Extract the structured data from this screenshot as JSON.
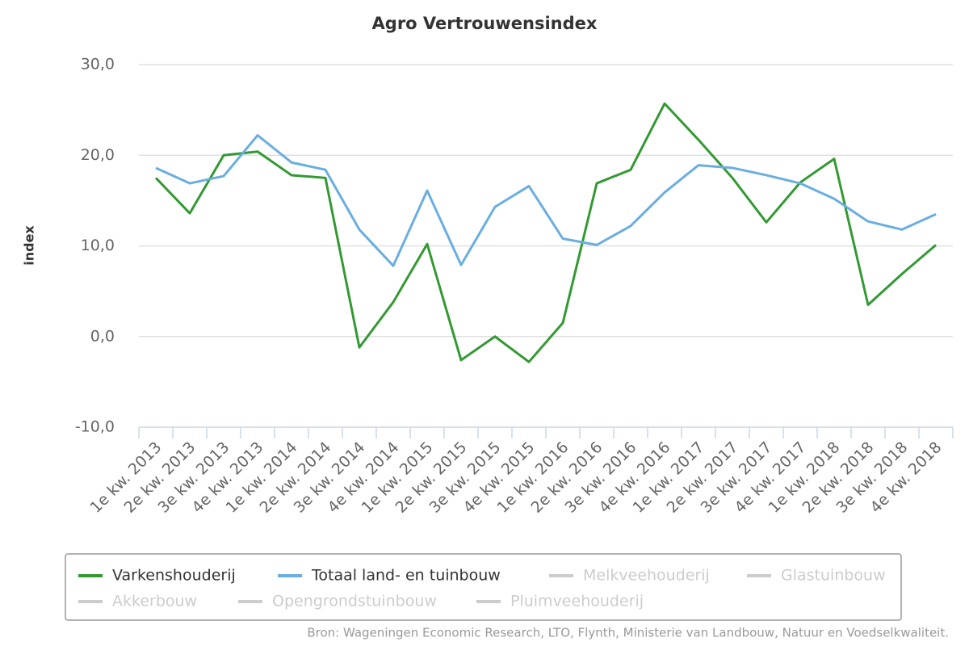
{
  "chart_data": {
    "type": "line",
    "title": "Agro Vertrouwensindex",
    "y_label": "index",
    "source": "Bron: Wageningen Economic Research, LTO, Flynth, Ministerie van Landbouw, Natuur en Voedselkwaliteit.",
    "categories": [
      "1e kw. 2013",
      "2e kw. 2013",
      "3e kw. 2013",
      "4e kw. 2013",
      "1e kw. 2014",
      "2e kw. 2014",
      "3e kw. 2014",
      "4e kw. 2014",
      "1e kw. 2015",
      "2e kw. 2015",
      "3e kw. 2015",
      "4e kw. 2015",
      "1e kw. 2016",
      "2e kw. 2016",
      "3e kw. 2016",
      "4e kw. 2016",
      "1e kw. 2017",
      "2e kw. 2017",
      "3e kw. 2017",
      "4e kw. 2017",
      "1e kw. 2018",
      "2e kw. 2018",
      "3e kw. 2018",
      "4e kw. 2018"
    ],
    "series": [
      {
        "name": "Varkenshouderij",
        "color": "#339933",
        "values": [
          17.5,
          13.6,
          20.0,
          20.4,
          17.8,
          17.5,
          -1.2,
          3.8,
          10.2,
          -2.6,
          0.0,
          -2.8,
          1.5,
          16.9,
          18.4,
          25.7,
          21.7,
          17.5,
          12.6,
          17.0,
          19.6,
          3.5,
          6.9,
          10.1
        ]
      },
      {
        "name": "Totaal land- en tuinbouw",
        "color": "#6aaee0",
        "values": [
          18.6,
          16.9,
          17.7,
          22.2,
          19.2,
          18.4,
          11.8,
          7.8,
          16.1,
          7.9,
          14.3,
          16.6,
          10.8,
          10.1,
          12.2,
          15.9,
          18.9,
          18.6,
          17.8,
          16.9,
          15.2,
          12.7,
          11.8,
          13.5
        ]
      }
    ],
    "hidden_series": [
      "Melkveehouderij",
      "Glastuinbouw",
      "Akkerbouw",
      "Opengrondstuinbouw",
      "Pluimveehouderij"
    ],
    "hidden_color": "#cccccc",
    "ylim": [
      -10,
      30
    ],
    "yticks": [
      {
        "value": -10,
        "label": "-10,0"
      },
      {
        "value": 0,
        "label": "0,0"
      },
      {
        "value": 10,
        "label": "10,0"
      },
      {
        "value": 20,
        "label": "20,0"
      },
      {
        "value": 30,
        "label": "30,0"
      }
    ],
    "grid": true
  }
}
